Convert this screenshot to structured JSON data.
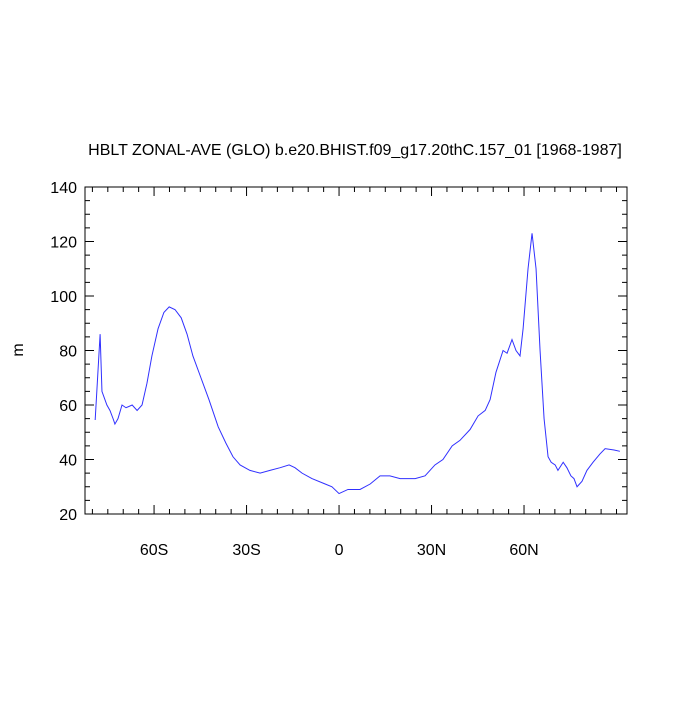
{
  "chart_data": {
    "type": "line",
    "title": "HBLT ZONAL-AVE (GLO) b.e20.BHIST.f09_g17.20thC.157_01 [1968-1987]",
    "y_label": "m",
    "x": [
      -79.1,
      -77.5,
      -76.9,
      -75.3,
      -74.3,
      -73.3,
      -72.7,
      -71.7,
      -70.4,
      -69.1,
      -67.1,
      -65.5,
      -63.9,
      -62.3,
      -60.7,
      -58.7,
      -56.8,
      -55.1,
      -53.2,
      -51.2,
      -49.3,
      -47.4,
      -44.8,
      -42.2,
      -39.2,
      -36.7,
      -34.4,
      -32.1,
      -28.9,
      -25.6,
      -22.4,
      -19.1,
      -16.2,
      -14.3,
      -12.0,
      -8.8,
      -4.5,
      -2.3,
      0,
      2.9,
      6.8,
      10.1,
      13.3,
      16.5,
      19.8,
      24.7,
      27.9,
      31.1,
      33.7,
      36.7,
      39.2,
      42.5,
      45.1,
      47.4,
      49.0,
      50.9,
      53.2,
      54.5,
      56.1,
      57.4,
      58.7,
      59.7,
      61.3,
      62.6,
      63.9,
      65.2,
      66.5,
      67.8,
      68.8,
      70.1,
      71.0,
      72.7,
      73.9,
      75.2,
      76.2,
      77.2,
      78.8,
      80.4,
      82.4,
      84.6,
      86.3,
      89.2,
      91.1
    ],
    "series": [
      {
        "color": "#3030ff",
        "values": [
          54.5,
          86,
          65,
          60,
          58,
          55,
          53,
          55,
          60,
          59,
          60,
          58,
          60,
          68,
          78,
          88,
          94,
          96,
          95,
          92,
          86,
          78,
          70,
          62,
          52,
          46,
          41,
          38,
          36,
          35,
          36,
          37,
          38,
          37,
          35,
          33,
          31,
          30,
          27.5,
          29,
          29,
          31,
          34,
          34,
          33,
          33,
          34,
          38,
          40,
          45,
          47,
          51,
          56,
          58,
          62,
          72,
          80,
          79,
          84,
          80,
          78,
          88,
          110,
          123,
          110,
          80,
          55,
          41,
          39,
          38,
          36,
          39,
          37,
          34,
          33,
          30,
          32,
          36,
          39,
          42,
          44,
          43.5,
          43
        ]
      }
    ],
    "xlim": [
      -82.4,
      93.4
    ],
    "ylim": [
      20,
      140
    ],
    "xticks": [
      {
        "value": -60,
        "label": "60S"
      },
      {
        "value": -30,
        "label": "30S"
      },
      0,
      {
        "value": 30,
        "label": "30N"
      },
      {
        "value": 60,
        "label": "60N"
      }
    ],
    "yticks": [
      20,
      40,
      60,
      80,
      100,
      120,
      140
    ],
    "xminorticks": [
      -80,
      -75,
      -70,
      -65,
      -55,
      -50,
      -45,
      -40,
      -35,
      -25,
      -20,
      -15,
      -10,
      -5,
      5,
      10,
      15,
      20,
      25,
      35,
      40,
      45,
      50,
      55,
      65,
      70,
      75,
      80,
      85,
      90
    ],
    "yminorticks": [
      25,
      30,
      35,
      45,
      50,
      55,
      65,
      70,
      75,
      85,
      90,
      95,
      105,
      110,
      115,
      125,
      130,
      135
    ]
  }
}
